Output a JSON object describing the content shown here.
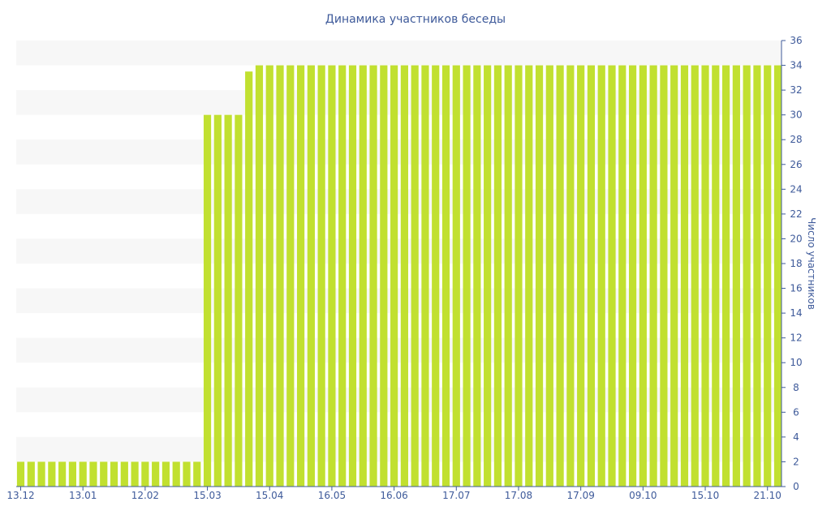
{
  "chart_data": {
    "type": "bar",
    "title": "Динамика участников беседы",
    "xlabel": "",
    "ylabel": "Число участников",
    "ylim": [
      0,
      36
    ],
    "y_ticks": [
      0,
      2,
      4,
      6,
      8,
      10,
      12,
      14,
      16,
      18,
      20,
      22,
      24,
      26,
      28,
      30,
      32,
      34,
      36
    ],
    "y_axis_position": "right",
    "grid": "alternating horizontal bands",
    "bar_color": "#c1e030",
    "x_tick_labels": [
      {
        "label": "13.12",
        "index": 0
      },
      {
        "label": "13.01",
        "index": 6
      },
      {
        "label": "12.02",
        "index": 12
      },
      {
        "label": "15.03",
        "index": 18
      },
      {
        "label": "15.04",
        "index": 24
      },
      {
        "label": "16.05",
        "index": 30
      },
      {
        "label": "16.06",
        "index": 36
      },
      {
        "label": "17.07",
        "index": 42
      },
      {
        "label": "17.08",
        "index": 48
      },
      {
        "label": "17.09",
        "index": 54
      },
      {
        "label": "09.10",
        "index": 60
      },
      {
        "label": "15.10",
        "index": 66
      },
      {
        "label": "21.10",
        "index": 72
      }
    ],
    "values": [
      2,
      2,
      2,
      2,
      2,
      2,
      2,
      2,
      2,
      2,
      2,
      2,
      2,
      2,
      2,
      2,
      2,
      2,
      30,
      30,
      30,
      30,
      33.5,
      34,
      34,
      34,
      34,
      34,
      34,
      34,
      34,
      34,
      34,
      34,
      34,
      34,
      34,
      34,
      34,
      34,
      34,
      34,
      34,
      34,
      34,
      34,
      34,
      34,
      34,
      34,
      34,
      34,
      34,
      34,
      34,
      34,
      34,
      34,
      34,
      34,
      34,
      34,
      34,
      34,
      34,
      34,
      34,
      34,
      34,
      34,
      34,
      34,
      34,
      34
    ]
  }
}
